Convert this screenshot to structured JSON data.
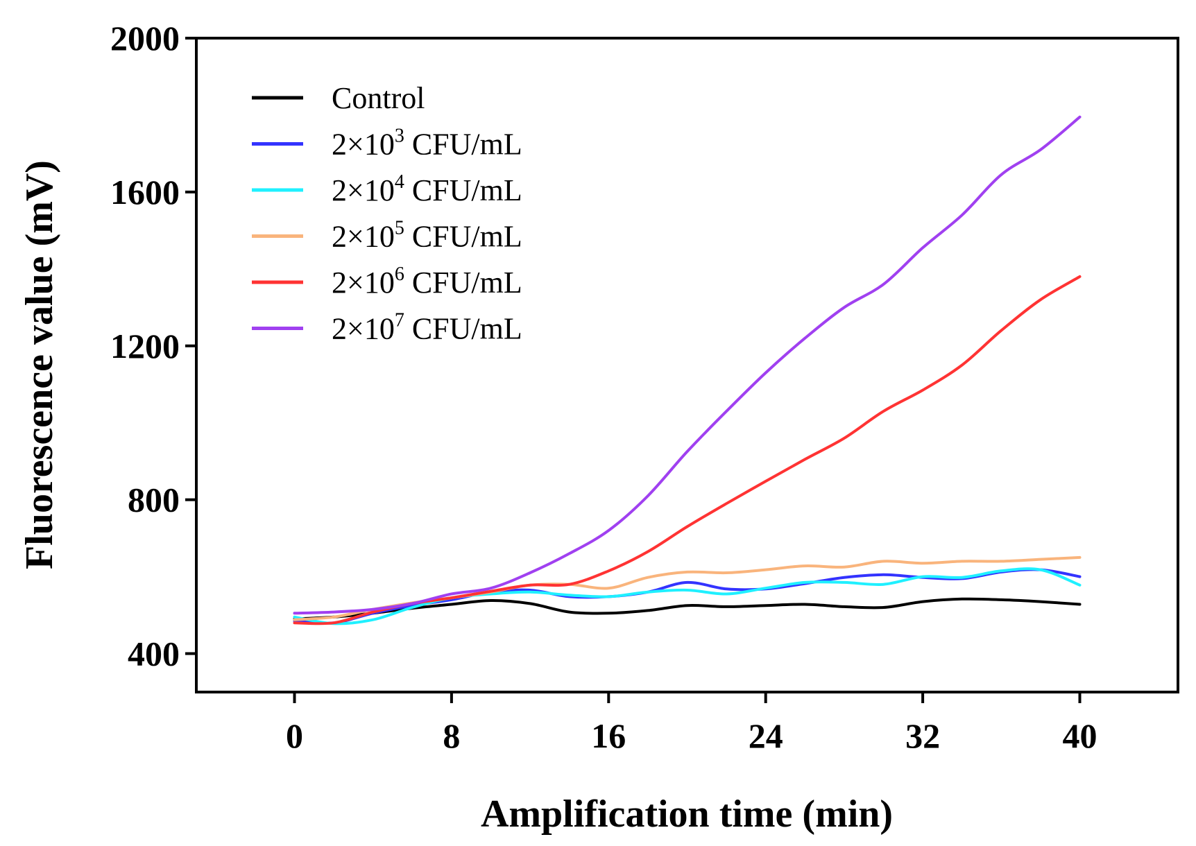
{
  "chart_data": {
    "type": "line",
    "xlabel": "Amplification time (min)",
    "ylabel": "Fluorescence value (mV)",
    "xlim": [
      -5,
      45
    ],
    "ylim": [
      300,
      2000
    ],
    "xticks": [
      0,
      8,
      16,
      24,
      32,
      40
    ],
    "yticks": [
      400,
      800,
      1200,
      1600,
      2000
    ],
    "grid": false,
    "legend_position": "top-left",
    "x": [
      0,
      2,
      4,
      6,
      8,
      10,
      12,
      14,
      16,
      18,
      20,
      22,
      24,
      26,
      28,
      30,
      32,
      34,
      36,
      38,
      40
    ],
    "series": [
      {
        "name": "Control",
        "label": {
          "prefix": "Control",
          "exp": "",
          "suffix": ""
        },
        "color": "#000000",
        "values": [
          490,
          495,
          505,
          518,
          528,
          538,
          530,
          508,
          505,
          512,
          525,
          522,
          525,
          528,
          522,
          520,
          535,
          542,
          540,
          535,
          528
        ]
      },
      {
        "name": "2×10^3 CFU/mL",
        "label": {
          "prefix": "2×10",
          "exp": "3",
          "suffix": " CFU/mL"
        },
        "color": "#3333ff",
        "values": [
          485,
          480,
          505,
          525,
          540,
          560,
          565,
          548,
          548,
          560,
          585,
          568,
          568,
          582,
          598,
          605,
          598,
          595,
          612,
          618,
          600
        ]
      },
      {
        "name": "2×10^4 CFU/mL",
        "label": {
          "prefix": "2×10",
          "exp": "4",
          "suffix": " CFU/mL"
        },
        "color": "#1ff0ff",
        "values": [
          495,
          478,
          488,
          520,
          545,
          555,
          560,
          552,
          548,
          560,
          565,
          555,
          570,
          585,
          585,
          580,
          600,
          598,
          615,
          618,
          578
        ]
      },
      {
        "name": "2×10^5 CFU/mL",
        "label": {
          "prefix": "2×10",
          "exp": "5",
          "suffix": " CFU/mL"
        },
        "color": "#f9b47c",
        "values": [
          488,
          495,
          515,
          532,
          545,
          560,
          578,
          580,
          570,
          598,
          612,
          610,
          618,
          628,
          625,
          640,
          635,
          640,
          640,
          645,
          650
        ]
      },
      {
        "name": "2×10^6 CFU/mL",
        "label": {
          "prefix": "2×10",
          "exp": "6",
          "suffix": " CFU/mL"
        },
        "color": "#ff3333",
        "values": [
          480,
          480,
          508,
          530,
          545,
          562,
          578,
          580,
          615,
          665,
          730,
          790,
          848,
          905,
          960,
          1030,
          1085,
          1150,
          1240,
          1320,
          1380
        ]
      },
      {
        "name": "2×10^7 CFU/mL",
        "label": {
          "prefix": "2×10",
          "exp": "7",
          "suffix": " CFU/mL"
        },
        "color": "#a040f0",
        "values": [
          505,
          508,
          515,
          530,
          555,
          570,
          610,
          660,
          720,
          810,
          925,
          1030,
          1130,
          1220,
          1300,
          1360,
          1455,
          1540,
          1645,
          1710,
          1795
        ]
      }
    ]
  }
}
